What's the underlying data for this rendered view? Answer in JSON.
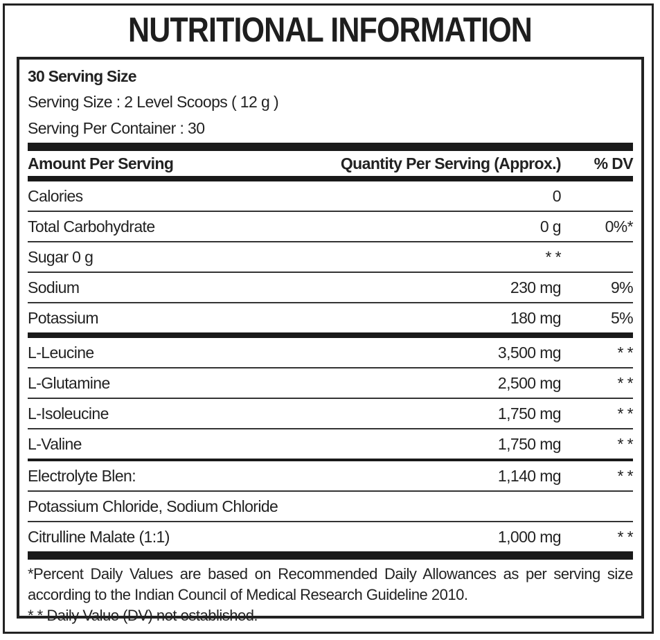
{
  "title": "NUTRITIONAL INFORMATION",
  "serving": {
    "heading": "30 Serving Size",
    "size": "Serving Size : 2 Level Scoops ( 12 g )",
    "per_container": "Serving Per Container  : 30"
  },
  "table": {
    "headers": [
      "Amount Per Serving",
      "Quantity Per Serving (Approx.)",
      "% DV"
    ],
    "rows": [
      {
        "name": "Calories",
        "qty": "0",
        "dv": ""
      },
      {
        "name": "Total Carbohydrate",
        "qty": "0 g",
        "dv": "0%*"
      },
      {
        "name": "Sugar  0 g",
        "qty": "* *",
        "dv": ""
      },
      {
        "name": "Sodium",
        "qty": "230 mg",
        "dv": "9%"
      },
      {
        "name": "Potassium",
        "qty": "180 mg",
        "dv": "5%"
      },
      {
        "name": "L-Leucine",
        "qty": "3,500 mg",
        "dv": "* *"
      },
      {
        "name": "L-Glutamine",
        "qty": "2,500 mg",
        "dv": "* *"
      },
      {
        "name": "L-Isoleucine",
        "qty": "1,750 mg",
        "dv": "* *"
      },
      {
        "name": "L-Valine",
        "qty": "1,750 mg",
        "dv": "* *"
      },
      {
        "name": "Electrolyte Blen:",
        "qty": "1,140 mg",
        "dv": "* *"
      },
      {
        "name": "Potassium Chloride, Sodium Chloride",
        "qty": "",
        "dv": ""
      },
      {
        "name": "Citrulline Malate (1:1)",
        "qty": "1,000 mg",
        "dv": "* *"
      }
    ]
  },
  "footnotes": [
    "*Percent Daily Values are based on Recommended Daily Allowances as per serving size",
    "according to the Indian Council of Medical Research Guideline 2010.",
    "* * Daily Value (DV) not established."
  ]
}
